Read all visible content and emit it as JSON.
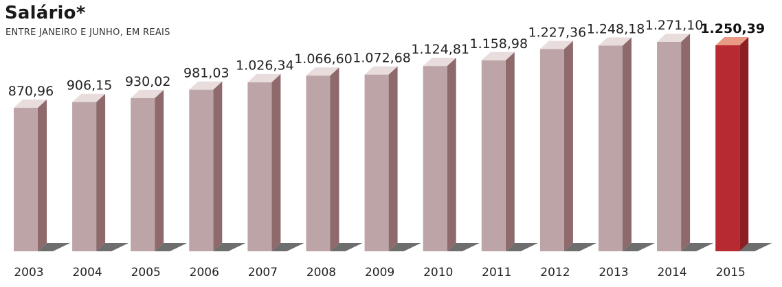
{
  "header": {
    "title": "Salário*",
    "subtitle": "ENTRE JANEIRO E JUNHO, EM REAIS"
  },
  "chart_data": {
    "type": "bar",
    "title": "Salário*",
    "subtitle": "ENTRE JANEIRO E JUNHO, EM REAIS",
    "categories": [
      "2003",
      "2004",
      "2005",
      "2006",
      "2007",
      "2008",
      "2009",
      "2010",
      "2011",
      "2012",
      "2013",
      "2014",
      "2015"
    ],
    "values": [
      870.96,
      906.15,
      930.02,
      981.03,
      1026.34,
      1066.6,
      1072.68,
      1124.81,
      1158.98,
      1227.36,
      1248.18,
      1271.1,
      1250.39
    ],
    "value_labels": [
      "870,96",
      "906,15",
      "930,02",
      "981,03",
      "1.026,34",
      "1.066,60",
      "1.072,68",
      "1.124,81",
      "1.158,98",
      "1.227,36",
      "1.248,18",
      "1.271,10",
      "1.250,39"
    ],
    "highlight_index": 12,
    "ylim": [
      0,
      1271.1
    ],
    "xlabel": "",
    "ylabel": "",
    "grid": false,
    "colors": {
      "bar_front": "#bca4a7",
      "bar_side": "#8e6a6d",
      "bar_top": "#e8dcdc",
      "highlight_front": "#b82a32",
      "highlight_side": "#8c1f24",
      "highlight_top": "#e89a84",
      "shadow": "#6e6e6e"
    }
  }
}
